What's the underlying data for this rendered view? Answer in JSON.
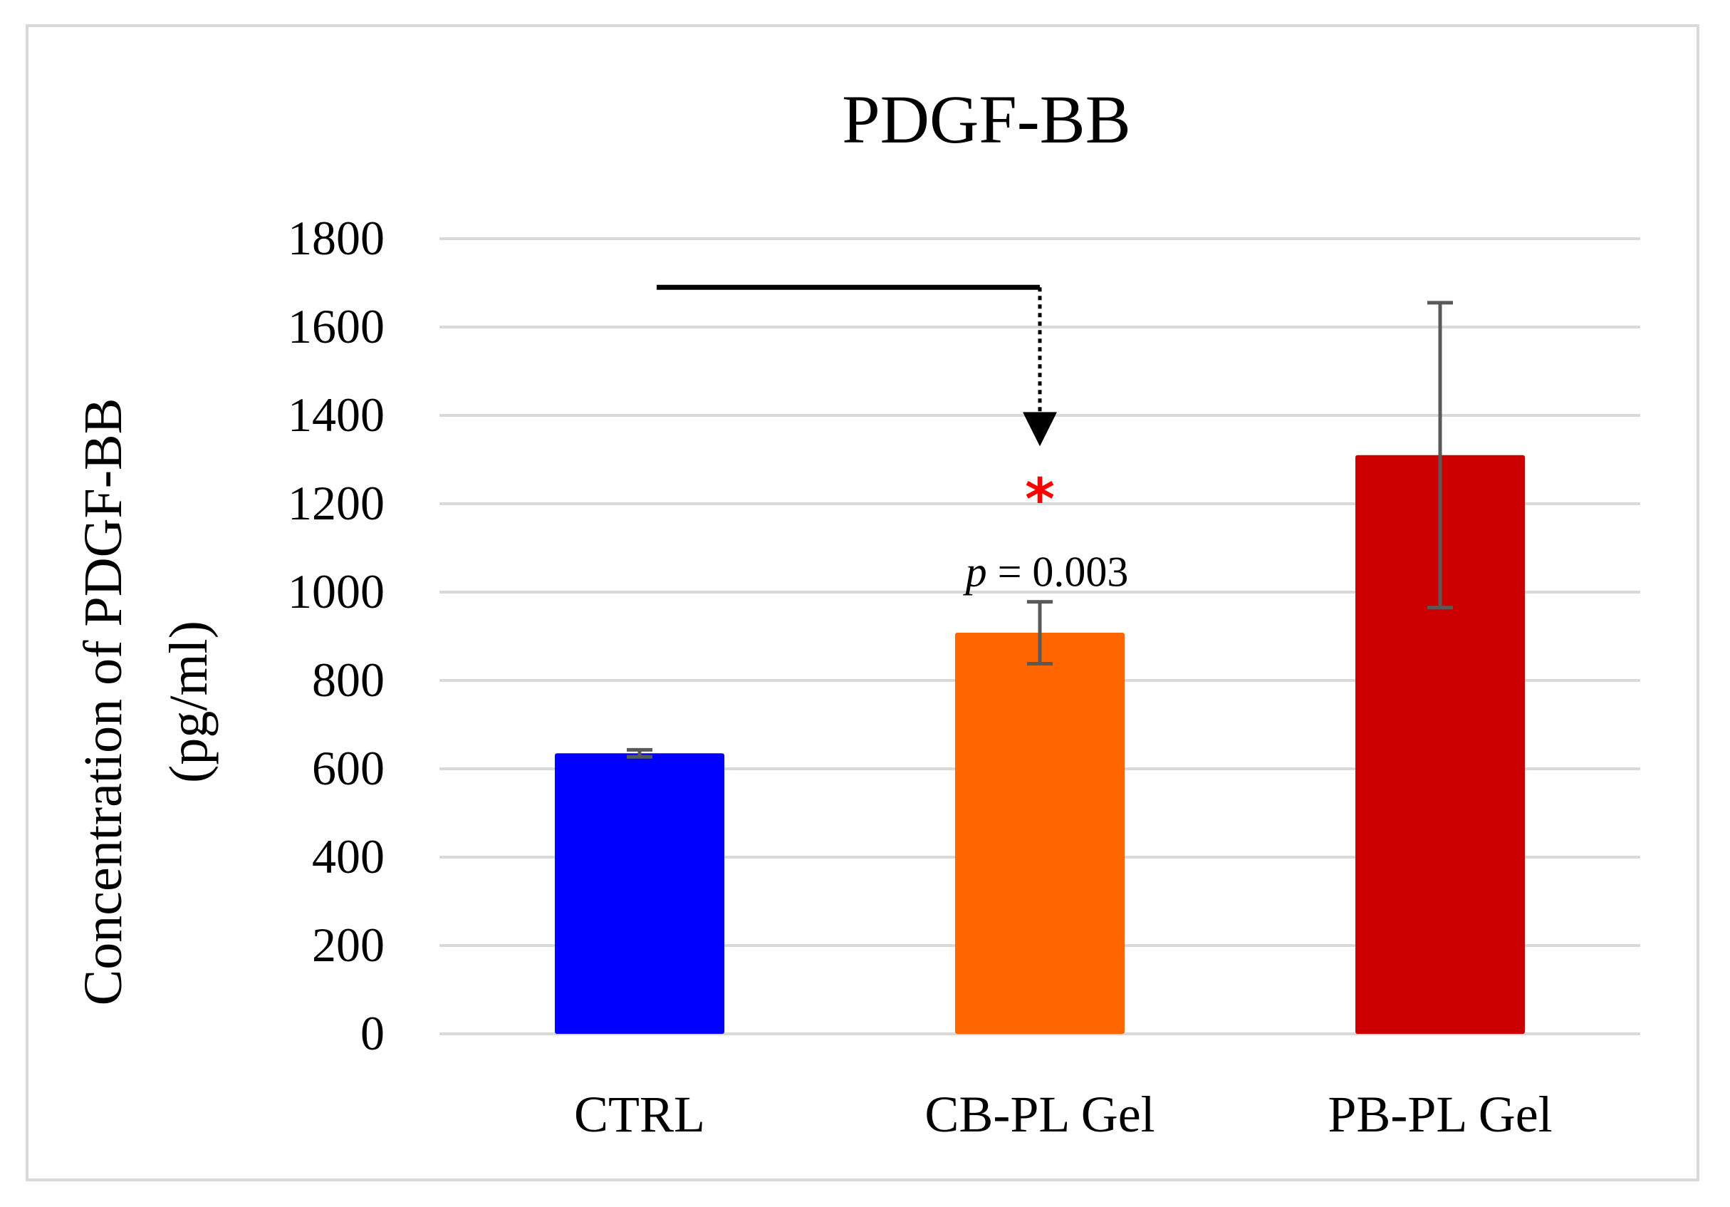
{
  "chart_data": {
    "type": "bar",
    "title": "PDGF-BB",
    "ylabel_line1": "Concentration of PDGF-BB",
    "ylabel_line2": "(pg/ml)",
    "xlabel": "",
    "categories": [
      "CTRL",
      "CB-PL Gel",
      "PB-PL Gel"
    ],
    "values": [
      635,
      908,
      1310
    ],
    "errors": [
      8,
      70,
      345
    ],
    "colors": [
      "#0000ff",
      "#ff6600",
      "#cc0000"
    ],
    "ylim": [
      0,
      1800
    ],
    "yticks": [
      0,
      200,
      400,
      600,
      800,
      1000,
      1200,
      1400,
      1600,
      1800
    ],
    "ytick_labels": [
      "0",
      "200",
      "400",
      "600",
      "800",
      "1000",
      "1200",
      "1400",
      "1600",
      "1800"
    ],
    "grid": true,
    "annotation": {
      "comparison": [
        "CTRL",
        "CB-PL Gel"
      ],
      "bracket_level": 1690,
      "arrow_tip": 1330,
      "significance_mark": "*",
      "significance_color": "#ff0000",
      "p_symbol": "p",
      "p_rest": " = 0.003"
    }
  }
}
